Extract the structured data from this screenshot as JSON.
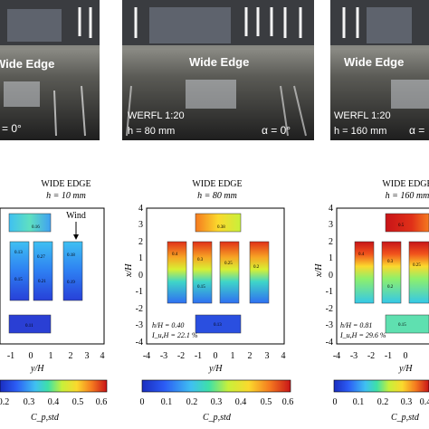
{
  "photos": [
    {
      "title": "Wide Edge",
      "scale": "",
      "h": "",
      "alpha": "= 0°"
    },
    {
      "title": "Wide Edge",
      "scale": "WERFL 1:20",
      "h": "h = 80 mm",
      "alpha": "α = 0°"
    },
    {
      "title": "Wide Edge",
      "scale": "WERFL 1:20",
      "h": "h = 160 mm",
      "alpha": "α ="
    }
  ],
  "panels": [
    {
      "title": "WIDE EDGE",
      "height_label": "h = 10 mm",
      "xlabel": "y/H",
      "ylabel": "",
      "xticks": [
        "-1",
        "0",
        "1",
        "2",
        "3",
        "4"
      ],
      "yticks": [],
      "wind_label": "Wind",
      "ratio_label": "",
      "intensity_label": "",
      "face_labels": [
        "0.16",
        "0.13",
        "0.27",
        "0.18",
        "0.15",
        "0.21",
        "0.19",
        "0.11"
      ]
    },
    {
      "title": "WIDE EDGE",
      "height_label": "h = 80 mm",
      "xlabel": "y/H",
      "ylabel": "x/H",
      "xticks": [
        "-4",
        "-3",
        "-2",
        "-1",
        "0",
        "1",
        "2",
        "3",
        "4"
      ],
      "yticks": [
        "4",
        "3",
        "2",
        "1",
        "0",
        "-1",
        "-2",
        "-3",
        "-4"
      ],
      "wind_label": "",
      "ratio_label": "h/H = 0.40",
      "intensity_label": "I_u,H = 22.1 %",
      "face_labels": [
        "0.38",
        "0.4",
        "0.3",
        "0.25",
        "0.2",
        "0.15",
        "0.13"
      ]
    },
    {
      "title": "WIDE EDGE",
      "height_label": "h = 160 mm",
      "xlabel": "y/H",
      "ylabel": "x/H",
      "xticks": [
        "-4",
        "-3",
        "-2",
        "-1",
        "0"
      ],
      "yticks": [
        "4",
        "3",
        "2",
        "1",
        "0",
        "-1",
        "-2",
        "-3",
        "-4"
      ],
      "wind_label": "",
      "ratio_label": "h/H = 0.81",
      "intensity_label": "I_u,H = 29.6 %",
      "face_labels": [
        "0.5",
        "0.4",
        "0.3",
        "0.25",
        "0.2",
        "0.15"
      ]
    }
  ],
  "colorbars": [
    {
      "ticks": [
        "0.2",
        "0.3",
        "0.4",
        "0.5",
        "0.6"
      ],
      "label": "C_p,std",
      "min": 0.1,
      "max": 0.6
    },
    {
      "ticks": [
        "0",
        "0.1",
        "0.2",
        "0.3",
        "0.4",
        "0.5",
        "0.6"
      ],
      "label": "C_p,std",
      "min": 0,
      "max": 0.6
    },
    {
      "ticks": [
        "0",
        "0.1",
        "0.2",
        "0.3",
        "0.4"
      ],
      "label": "C_p,std",
      "min": 0,
      "max": 0.6
    }
  ],
  "colors": {
    "jet_low": "#1a2dbf",
    "jet_mid": "#3ee0a8",
    "jet_high": "#c81418",
    "photo_floor": "#2a2a2a"
  }
}
